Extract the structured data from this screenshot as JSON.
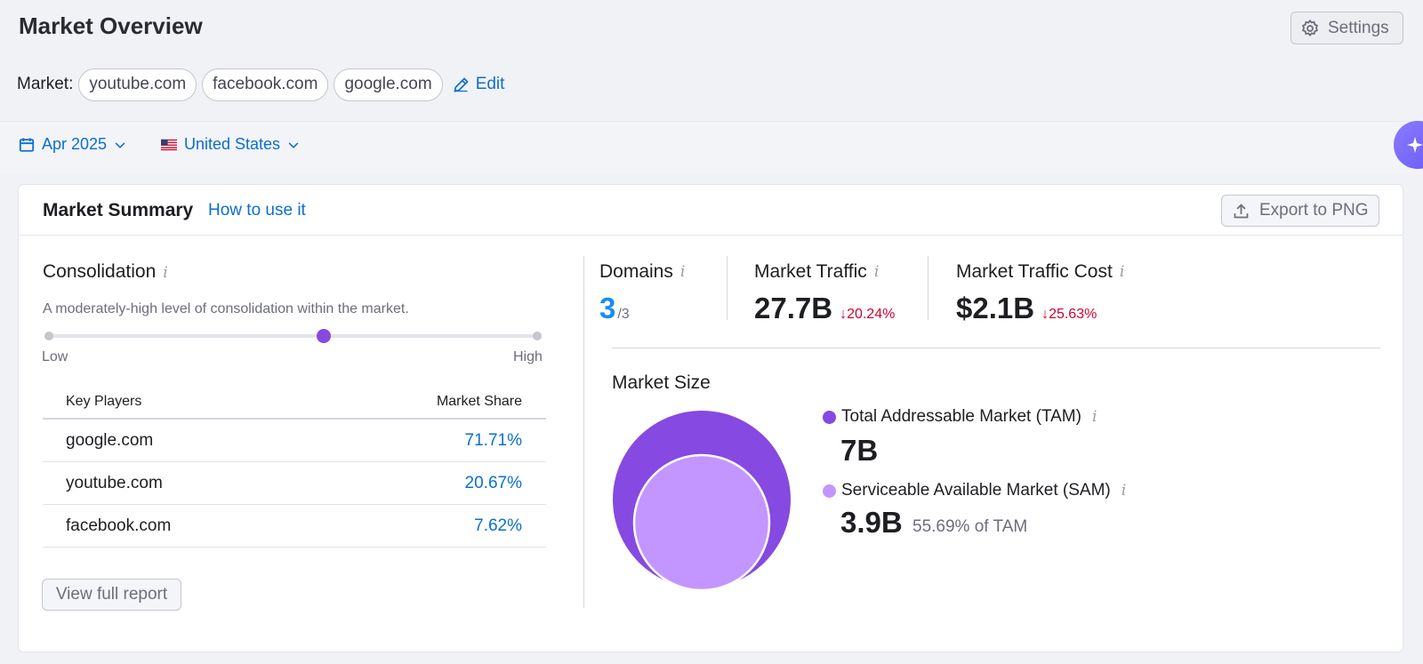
{
  "header": {
    "title": "Market Overview",
    "settings_label": "Settings"
  },
  "market": {
    "label": "Market:",
    "domains": [
      "youtube.com",
      "facebook.com",
      "google.com"
    ],
    "edit_label": "Edit"
  },
  "filters": {
    "date": "Apr 2025",
    "country": "United States"
  },
  "summary": {
    "title": "Market Summary",
    "how_to": "How to use it",
    "export_label": "Export to PNG",
    "consolidation": {
      "title": "Consolidation",
      "description": "A moderately-high level of consolidation within the market.",
      "low_label": "Low",
      "high_label": "High",
      "level": 0.56
    },
    "key_players": {
      "header_player": "Key Players",
      "header_share": "Market Share",
      "rows": [
        {
          "domain": "google.com",
          "share": "71.71%"
        },
        {
          "domain": "youtube.com",
          "share": "20.67%"
        },
        {
          "domain": "facebook.com",
          "share": "7.62%"
        }
      ]
    },
    "view_full_report": "View full report",
    "metrics": {
      "domains": {
        "label": "Domains",
        "value": "3",
        "total": "/3"
      },
      "traffic": {
        "label": "Market Traffic",
        "value": "27.7B",
        "delta": "↓20.24%"
      },
      "cost": {
        "label": "Market Traffic Cost",
        "value": "$2.1B",
        "delta": "↓25.63%"
      }
    },
    "market_size": {
      "title": "Market Size",
      "tam": {
        "label": "Total Addressable Market (TAM)",
        "value": "7B",
        "color": "#8649e1"
      },
      "sam": {
        "label": "Serviceable Available Market (SAM)",
        "value": "3.9B",
        "pct": "55.69% of TAM",
        "color": "#c396ff"
      }
    }
  },
  "colors": {
    "accent": "#0b6fce",
    "negative": "#d1002f",
    "background": "#f1f2f6"
  }
}
